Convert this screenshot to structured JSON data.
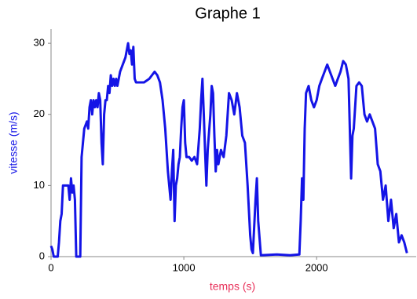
{
  "chart_data": {
    "type": "line",
    "title": "Graphe 1",
    "x_label": "temps (s)",
    "y_label": "vitesse (m/s)",
    "xlim": [
      0,
      2750
    ],
    "ylim": [
      0,
      32
    ],
    "xticks": [
      0,
      1000,
      2000
    ],
    "yticks": [
      0,
      10,
      20,
      30
    ],
    "series": [
      {
        "name": "vitesse",
        "color": "#1414e6",
        "x": [
          0,
          10,
          20,
          50,
          60,
          70,
          80,
          90,
          110,
          130,
          140,
          150,
          160,
          170,
          180,
          190,
          200,
          220,
          230,
          250,
          270,
          280,
          290,
          300,
          310,
          320,
          330,
          340,
          350,
          360,
          370,
          380,
          390,
          400,
          410,
          420,
          430,
          440,
          450,
          460,
          470,
          480,
          490,
          500,
          520,
          540,
          560,
          580,
          590,
          600,
          610,
          620,
          630,
          640,
          660,
          700,
          740,
          760,
          780,
          800,
          820,
          840,
          860,
          870,
          880,
          890,
          900,
          910,
          920,
          930,
          940,
          950,
          960,
          970,
          980,
          990,
          1000,
          1010,
          1020,
          1040,
          1060,
          1080,
          1100,
          1120,
          1130,
          1140,
          1150,
          1160,
          1170,
          1180,
          1200,
          1210,
          1220,
          1230,
          1240,
          1250,
          1260,
          1280,
          1300,
          1320,
          1340,
          1360,
          1380,
          1400,
          1420,
          1440,
          1460,
          1480,
          1500,
          1510,
          1520,
          1540,
          1550,
          1560,
          1580,
          1700,
          1800,
          1870,
          1880,
          1890,
          1900,
          1910,
          1920,
          1940,
          1960,
          1980,
          2000,
          2020,
          2040,
          2060,
          2080,
          2100,
          2120,
          2140,
          2160,
          2180,
          2200,
          2220,
          2240,
          2260,
          2270,
          2280,
          2300,
          2320,
          2340,
          2360,
          2380,
          2400,
          2420,
          2440,
          2460,
          2480,
          2500,
          2520,
          2540,
          2560,
          2580,
          2600,
          2620,
          2640,
          2660,
          2680
        ],
        "values": [
          1.5,
          1,
          0,
          0,
          2,
          5,
          6,
          10,
          10,
          10,
          8,
          11,
          9,
          10,
          8,
          0,
          0,
          0,
          14,
          18,
          19,
          18,
          21,
          22,
          20,
          22,
          21,
          22,
          21,
          23,
          22,
          16,
          13,
          20,
          22,
          22,
          24,
          23,
          25.5,
          24,
          25,
          24,
          25,
          24,
          26,
          27,
          28,
          30,
          28.5,
          29,
          27,
          29.5,
          25,
          24.5,
          24.5,
          24.5,
          25,
          25.5,
          26,
          25.5,
          24.5,
          22,
          18,
          15,
          12,
          10,
          8,
          12,
          15,
          5,
          10,
          11,
          13,
          14,
          18,
          21,
          22,
          16,
          14,
          14,
          13.5,
          14,
          13,
          18,
          22,
          25,
          20,
          15,
          10,
          15,
          20,
          24,
          23,
          17,
          12,
          15,
          13,
          15,
          14,
          17,
          23,
          22,
          20,
          23,
          21,
          17,
          16,
          10,
          3,
          1,
          0.5,
          8,
          11,
          5,
          0.2,
          0.3,
          0.2,
          0.3,
          5,
          11,
          8,
          18,
          23,
          24,
          22,
          21,
          22,
          24,
          25,
          26,
          27,
          26,
          25,
          24,
          25,
          26,
          27.5,
          27,
          25,
          11,
          17,
          18,
          24,
          24.5,
          24,
          20,
          19,
          20,
          19,
          18,
          13,
          12,
          8,
          10,
          5,
          8,
          4,
          6,
          2,
          3,
          2,
          0.5
        ]
      }
    ]
  }
}
